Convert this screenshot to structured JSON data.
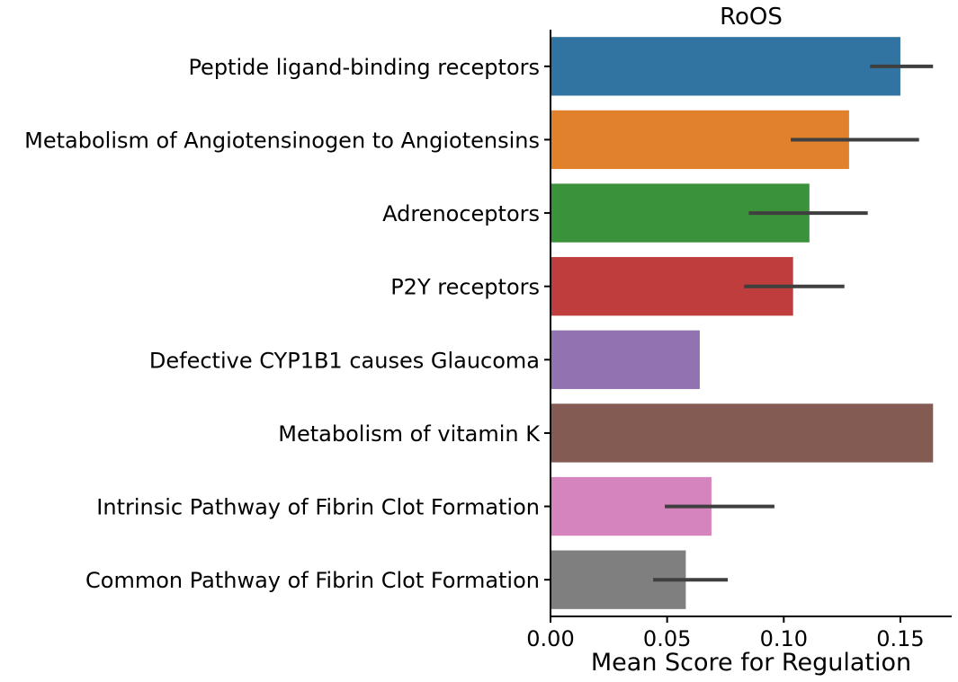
{
  "chart_data": {
    "type": "bar",
    "orientation": "horizontal",
    "title": "RoOS",
    "xlabel": "Mean Score for Regulation",
    "ylabel": "",
    "xlim": [
      0,
      0.172
    ],
    "xticks": [
      0.0,
      0.05,
      0.1,
      0.15
    ],
    "xtick_labels": [
      "0.00",
      "0.05",
      "0.10",
      "0.15"
    ],
    "grid": false,
    "legend": "none",
    "categories": [
      "Peptide ligand-binding receptors",
      "Metabolism of Angiotensinogen to Angiotensins",
      "Adrenoceptors",
      "P2Y receptors",
      "Defective CYP1B1 causes Glaucoma",
      "Metabolism of vitamin K",
      "Intrinsic Pathway of Fibrin Clot Formation",
      "Common Pathway of Fibrin Clot Formation"
    ],
    "values": [
      0.15,
      0.128,
      0.111,
      0.104,
      0.064,
      0.164,
      0.069,
      0.058
    ],
    "error_low": [
      0.137,
      0.103,
      0.085,
      0.083,
      null,
      null,
      0.049,
      0.044
    ],
    "error_high": [
      0.164,
      0.158,
      0.136,
      0.126,
      null,
      null,
      0.096,
      0.076
    ],
    "colors": [
      "#3274a1",
      "#e1812c",
      "#3a923a",
      "#c03d3e",
      "#9372b2",
      "#845b53",
      "#d684bd",
      "#7f7f7f"
    ],
    "error_color": "#3f3f3f"
  }
}
